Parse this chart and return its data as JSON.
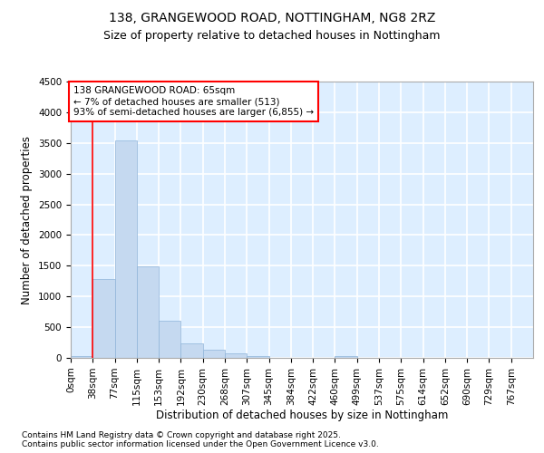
{
  "title_line1": "138, GRANGEWOOD ROAD, NOTTINGHAM, NG8 2RZ",
  "title_line2": "Size of property relative to detached houses in Nottingham",
  "xlabel": "Distribution of detached houses by size in Nottingham",
  "ylabel": "Number of detached properties",
  "bar_labels": [
    "0sqm",
    "38sqm",
    "77sqm",
    "115sqm",
    "153sqm",
    "192sqm",
    "230sqm",
    "268sqm",
    "307sqm",
    "345sqm",
    "384sqm",
    "422sqm",
    "460sqm",
    "499sqm",
    "537sqm",
    "575sqm",
    "614sqm",
    "652sqm",
    "690sqm",
    "729sqm",
    "767sqm"
  ],
  "bar_values": [
    30,
    1280,
    3540,
    1490,
    600,
    240,
    130,
    70,
    30,
    0,
    0,
    0,
    30,
    0,
    0,
    0,
    0,
    0,
    0,
    0,
    0
  ],
  "bar_color": "#c5d9f0",
  "bar_edge_color": "#8fb4d9",
  "background_color": "#ddeeff",
  "grid_color": "#ffffff",
  "annotation_text": "138 GRANGEWOOD ROAD: 65sqm\n← 7% of detached houses are smaller (513)\n93% of semi-detached houses are larger (6,855) →",
  "vline_x": 1,
  "ylim": [
    0,
    4500
  ],
  "yticks": [
    0,
    500,
    1000,
    1500,
    2000,
    2500,
    3000,
    3500,
    4000,
    4500
  ],
  "footer_text": "Contains HM Land Registry data © Crown copyright and database right 2025.\nContains public sector information licensed under the Open Government Licence v3.0.",
  "title_fontsize": 10,
  "subtitle_fontsize": 9,
  "annotation_fontsize": 7.5,
  "footer_fontsize": 6.5,
  "axis_label_fontsize": 8.5,
  "tick_fontsize": 7.5
}
